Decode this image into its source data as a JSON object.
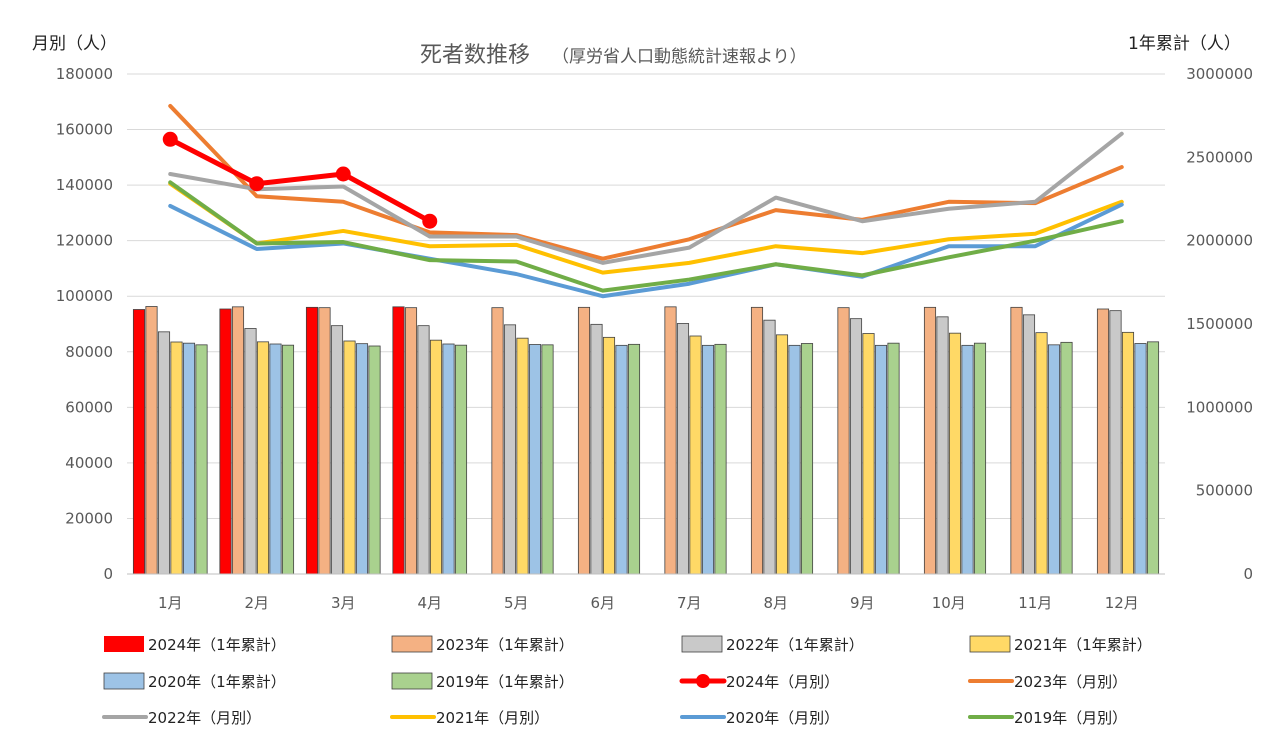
{
  "chart_data": {
    "type": "bar+line",
    "title": "死者数推移",
    "subtitle": "（厚労省人口動態統計速報より）",
    "y_left_label": "月別（人）",
    "y_right_label": "1年累計（人）",
    "categories": [
      "1月",
      "2月",
      "3月",
      "4月",
      "5月",
      "6月",
      "7月",
      "8月",
      "9月",
      "10月",
      "11月",
      "12月"
    ],
    "y_left": {
      "min": 0,
      "max": 180000,
      "ticks": [
        "0",
        "20000",
        "40000",
        "60000",
        "80000",
        "100000",
        "120000",
        "140000",
        "160000",
        "180000"
      ]
    },
    "y_right": {
      "min": 0,
      "max": 3000000,
      "ticks": [
        "0",
        "500000",
        "1000000",
        "1500000",
        "2000000",
        "2500000",
        "3000000"
      ]
    },
    "bar_series": [
      {
        "name": "2024年（1年累計）",
        "color": "#ff0000",
        "values": [
          1587000,
          1590000,
          1600000,
          1603000,
          null,
          null,
          null,
          null,
          null,
          null,
          null,
          null
        ]
      },
      {
        "name": "2023年（1年累計）",
        "color": "#f4b183",
        "values": [
          1605000,
          1603000,
          1598000,
          1598000,
          1598000,
          1600000,
          1603000,
          1600000,
          1598000,
          1600000,
          1600000,
          1590000
        ]
      },
      {
        "name": "2022年（1年累計）",
        "color": "#c9c9c9",
        "values": [
          1453000,
          1473000,
          1490000,
          1490000,
          1495000,
          1498000,
          1503000,
          1523000,
          1532000,
          1543000,
          1555000,
          1580000
        ]
      },
      {
        "name": "2021年（1年累計）",
        "color": "#ffd966",
        "values": [
          1392000,
          1393000,
          1398000,
          1403000,
          1415000,
          1420000,
          1428000,
          1435000,
          1443000,
          1445000,
          1448000,
          1450000
        ]
      },
      {
        "name": "2020年（1年累計）",
        "color": "#9dc3e6",
        "values": [
          1385000,
          1380000,
          1382000,
          1380000,
          1377000,
          1372000,
          1372000,
          1372000,
          1372000,
          1372000,
          1375000,
          1383000
        ]
      },
      {
        "name": "2019年（1年累計）",
        "color": "#a9d18e",
        "values": [
          1375000,
          1373000,
          1368000,
          1373000,
          1375000,
          1378000,
          1378000,
          1383000,
          1385000,
          1385000,
          1390000,
          1393000
        ]
      }
    ],
    "line_series": [
      {
        "name": "2024年（月別）",
        "color": "#ff0000",
        "markers": true,
        "values": [
          156500,
          140500,
          144000,
          127000,
          null,
          null,
          null,
          null,
          null,
          null,
          null,
          null
        ]
      },
      {
        "name": "2023年（月別）",
        "color": "#ed7d31",
        "markers": false,
        "values": [
          168500,
          136000,
          134000,
          123000,
          122000,
          113500,
          120500,
          131000,
          127500,
          134000,
          133500,
          146500
        ]
      },
      {
        "name": "2022年（月別）",
        "color": "#a5a5a5",
        "markers": false,
        "values": [
          144000,
          138500,
          139500,
          121500,
          121500,
          112000,
          117500,
          135500,
          127000,
          131500,
          134000,
          158500
        ]
      },
      {
        "name": "2021年（月別）",
        "color": "#ffc000",
        "markers": false,
        "values": [
          140500,
          119000,
          123500,
          118000,
          118500,
          108500,
          112000,
          118000,
          115500,
          120500,
          122500,
          134000
        ]
      },
      {
        "name": "2020年（月別）",
        "color": "#5b9bd5",
        "markers": false,
        "values": [
          132500,
          117000,
          119000,
          113500,
          108000,
          100000,
          104500,
          111500,
          107000,
          118000,
          118000,
          133000
        ]
      },
      {
        "name": "2019年（月別）",
        "color": "#70ad47",
        "markers": false,
        "values": [
          141000,
          119000,
          119500,
          113000,
          112500,
          102000,
          106000,
          111500,
          107500,
          114000,
          120000,
          127000
        ]
      }
    ],
    "legend": [
      {
        "label": "2024年（1年累計）",
        "kind": "bar",
        "color": "#ff0000"
      },
      {
        "label": "2023年（1年累計）",
        "kind": "bar",
        "color": "#f4b183"
      },
      {
        "label": "2022年（1年累計）",
        "kind": "bar",
        "color": "#c9c9c9"
      },
      {
        "label": "2021年（1年累計）",
        "kind": "bar",
        "color": "#ffd966"
      },
      {
        "label": "2020年（1年累計）",
        "kind": "bar",
        "color": "#9dc3e6"
      },
      {
        "label": "2019年（1年累計）",
        "kind": "bar",
        "color": "#a9d18e"
      },
      {
        "label": "2024年（月別）",
        "kind": "line-marker",
        "color": "#ff0000"
      },
      {
        "label": "2023年（月別）",
        "kind": "line",
        "color": "#ed7d31"
      },
      {
        "label": "2022年（月別）",
        "kind": "line",
        "color": "#a5a5a5"
      },
      {
        "label": "2021年（月別）",
        "kind": "line",
        "color": "#ffc000"
      },
      {
        "label": "2020年（月別）",
        "kind": "line",
        "color": "#5b9bd5"
      },
      {
        "label": "2019年（月別）",
        "kind": "line",
        "color": "#70ad47"
      }
    ]
  }
}
